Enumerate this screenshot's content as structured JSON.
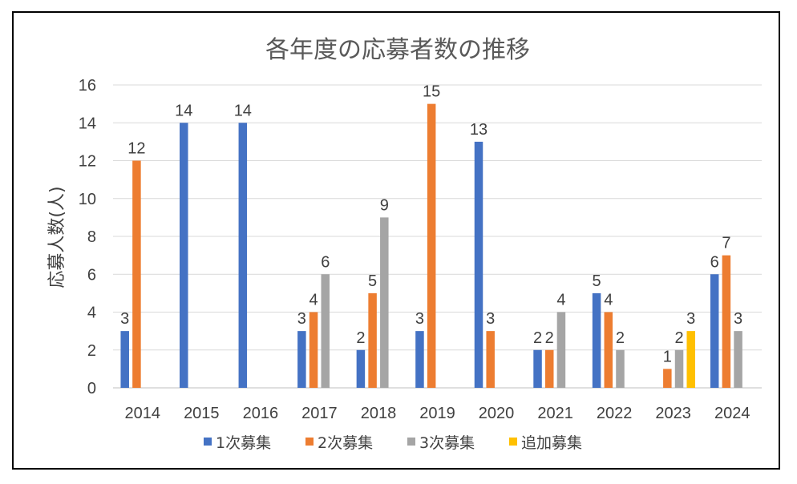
{
  "chart_data": {
    "type": "bar",
    "title": "各年度の応募者数の推移",
    "xlabel": "",
    "ylabel": "応募人数(人)",
    "ylim": [
      0,
      16
    ],
    "yticks": [
      "0",
      "2",
      "4",
      "6",
      "8",
      "10",
      "12",
      "14",
      "16"
    ],
    "grid": true,
    "legend_position": "bottom",
    "categories": [
      "2014",
      "2015",
      "2016",
      "2017",
      "2018",
      "2019",
      "2020",
      "2021",
      "2022",
      "2023",
      "2024"
    ],
    "series": [
      {
        "name": "1次募集",
        "color": "#4472C4",
        "values": [
          3,
          14,
          14,
          3,
          2,
          3,
          13,
          2,
          5,
          null,
          6
        ]
      },
      {
        "name": "2次募集",
        "color": "#ED7D31",
        "values": [
          12,
          null,
          null,
          4,
          5,
          15,
          3,
          2,
          4,
          1,
          7
        ]
      },
      {
        "name": "3次募集",
        "color": "#A5A5A5",
        "values": [
          null,
          null,
          null,
          6,
          9,
          null,
          null,
          4,
          2,
          2,
          3
        ]
      },
      {
        "name": "追加募集",
        "color": "#FFC000",
        "values": [
          null,
          null,
          null,
          null,
          null,
          null,
          null,
          null,
          null,
          3,
          null
        ]
      }
    ]
  }
}
